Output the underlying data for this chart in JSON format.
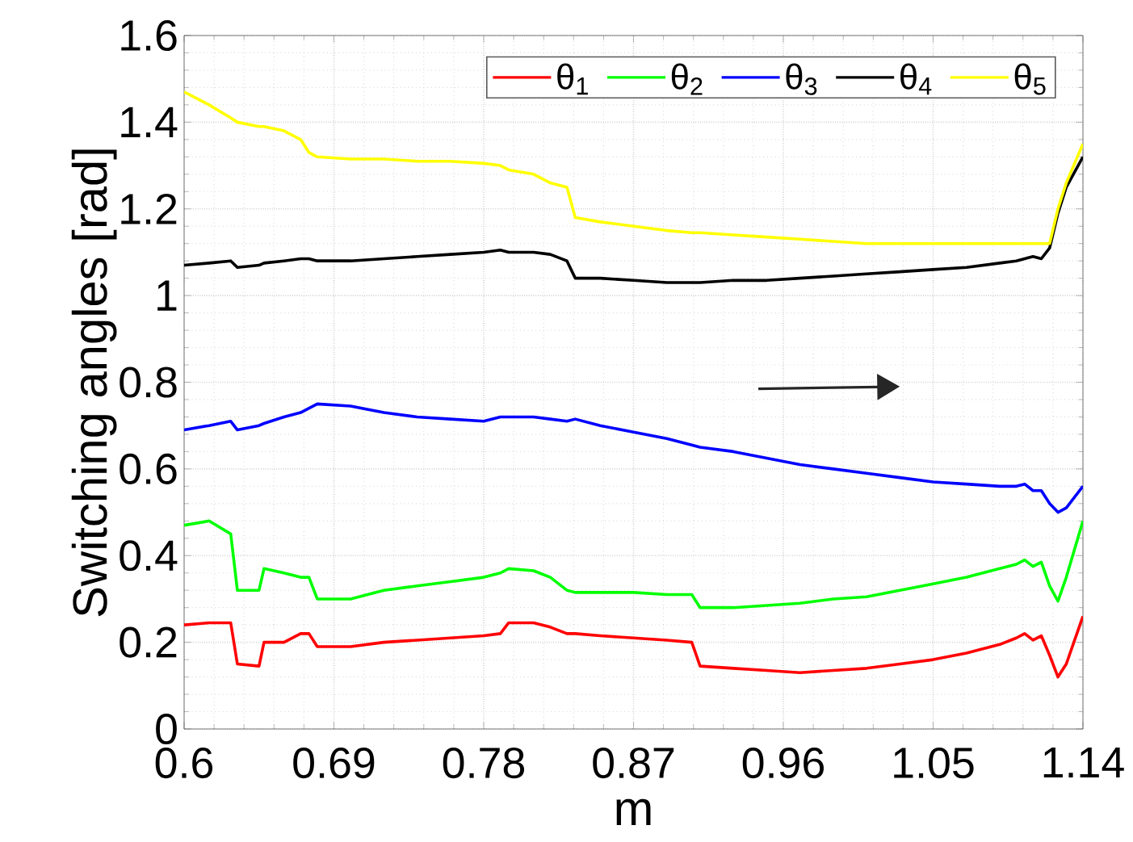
{
  "chart_data": {
    "type": "line",
    "xlabel": "m",
    "ylabel": "Switching angles [rad]",
    "x": [
      0.6,
      0.615,
      0.628,
      0.632,
      0.645,
      0.648,
      0.66,
      0.67,
      0.675,
      0.68,
      0.7,
      0.72,
      0.74,
      0.76,
      0.78,
      0.79,
      0.795,
      0.81,
      0.82,
      0.83,
      0.835,
      0.85,
      0.87,
      0.89,
      0.905,
      0.91,
      0.93,
      0.95,
      0.97,
      0.99,
      1.01,
      1.03,
      1.05,
      1.07,
      1.09,
      1.1,
      1.105,
      1.11,
      1.115,
      1.12,
      1.125,
      1.13,
      1.14
    ],
    "series": [
      {
        "name": "θ$_{1}$",
        "color": "#ff0000",
        "values": [
          0.24,
          0.245,
          0.245,
          0.15,
          0.145,
          0.2,
          0.2,
          0.22,
          0.22,
          0.19,
          0.19,
          0.2,
          0.205,
          0.21,
          0.215,
          0.22,
          0.245,
          0.245,
          0.235,
          0.22,
          0.22,
          0.215,
          0.21,
          0.205,
          0.2,
          0.145,
          0.14,
          0.135,
          0.13,
          0.135,
          0.14,
          0.15,
          0.16,
          0.175,
          0.195,
          0.21,
          0.22,
          0.205,
          0.215,
          0.17,
          0.12,
          0.15,
          0.26
        ]
      },
      {
        "name": "θ$_{2}$",
        "color": "#00ff00",
        "values": [
          0.47,
          0.48,
          0.45,
          0.32,
          0.32,
          0.37,
          0.36,
          0.35,
          0.35,
          0.3,
          0.3,
          0.32,
          0.33,
          0.34,
          0.35,
          0.36,
          0.37,
          0.365,
          0.35,
          0.32,
          0.315,
          0.315,
          0.315,
          0.31,
          0.31,
          0.28,
          0.28,
          0.285,
          0.29,
          0.3,
          0.305,
          0.32,
          0.335,
          0.35,
          0.37,
          0.38,
          0.39,
          0.375,
          0.385,
          0.33,
          0.295,
          0.35,
          0.48
        ]
      },
      {
        "name": "θ$_{3}$",
        "color": "#0000ff",
        "values": [
          0.69,
          0.7,
          0.71,
          0.69,
          0.7,
          0.705,
          0.72,
          0.73,
          0.74,
          0.75,
          0.745,
          0.73,
          0.72,
          0.715,
          0.71,
          0.72,
          0.72,
          0.72,
          0.715,
          0.71,
          0.715,
          0.7,
          0.685,
          0.67,
          0.655,
          0.65,
          0.64,
          0.625,
          0.61,
          0.6,
          0.59,
          0.58,
          0.57,
          0.565,
          0.56,
          0.56,
          0.565,
          0.55,
          0.55,
          0.52,
          0.5,
          0.51,
          0.56
        ]
      },
      {
        "name": "θ$_{4}$",
        "color": "#000000",
        "values": [
          1.07,
          1.075,
          1.08,
          1.065,
          1.07,
          1.075,
          1.08,
          1.085,
          1.085,
          1.08,
          1.08,
          1.085,
          1.09,
          1.095,
          1.1,
          1.105,
          1.1,
          1.1,
          1.095,
          1.08,
          1.04,
          1.04,
          1.035,
          1.03,
          1.03,
          1.03,
          1.035,
          1.035,
          1.04,
          1.045,
          1.05,
          1.055,
          1.06,
          1.065,
          1.075,
          1.08,
          1.085,
          1.09,
          1.085,
          1.11,
          1.19,
          1.25,
          1.32
        ]
      },
      {
        "name": "θ$_{5}$",
        "color": "#ffff00",
        "values": [
          1.47,
          1.44,
          1.41,
          1.4,
          1.39,
          1.39,
          1.38,
          1.36,
          1.33,
          1.32,
          1.315,
          1.315,
          1.31,
          1.31,
          1.305,
          1.3,
          1.29,
          1.28,
          1.26,
          1.25,
          1.18,
          1.17,
          1.16,
          1.15,
          1.145,
          1.145,
          1.14,
          1.135,
          1.13,
          1.125,
          1.12,
          1.12,
          1.12,
          1.12,
          1.12,
          1.12,
          1.12,
          1.12,
          1.12,
          1.12,
          1.2,
          1.26,
          1.35
        ]
      }
    ],
    "xlim": [
      0.6,
      1.14
    ],
    "xticks": [
      0.6,
      0.69,
      0.78,
      0.87,
      0.96,
      1.05,
      1.14
    ],
    "ylim": [
      0,
      1.6
    ],
    "yticks": [
      0,
      0.2,
      0.4,
      {
        "value": 0.6,
        "label": "0.6"
      },
      0.8,
      {
        "value": 1,
        "label": "1"
      },
      1.2,
      1.4,
      1.6
    ],
    "grid": true,
    "legend": "top right",
    "marker": "none",
    "line_style": "solid"
  }
}
